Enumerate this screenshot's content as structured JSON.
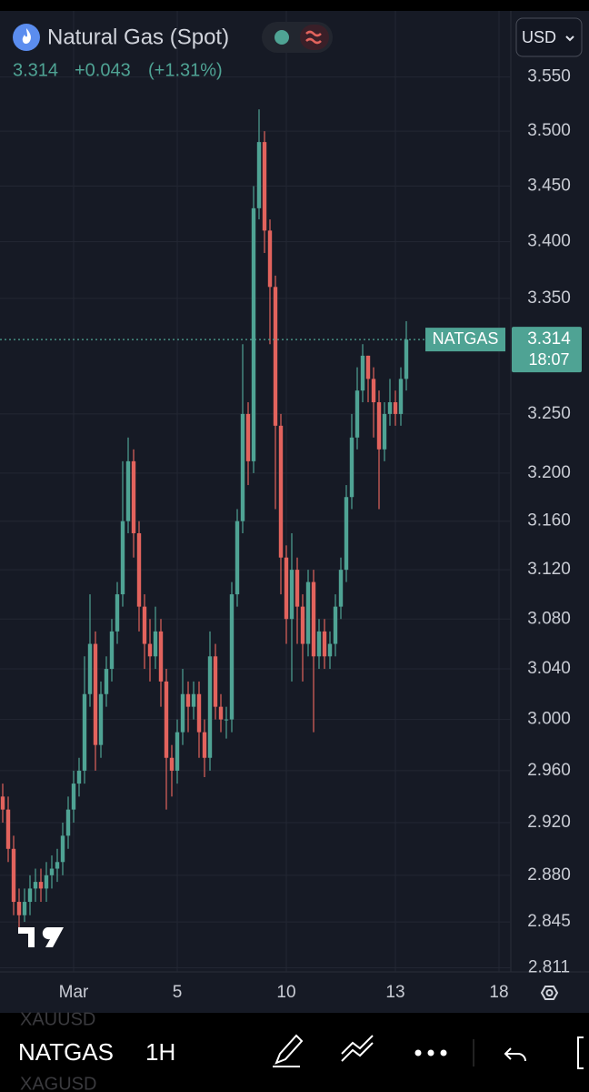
{
  "header": {
    "title": "Natural Gas (Spot)",
    "change": "+0.043",
    "change_percent": "(+1.31%)",
    "currency": "USD"
  },
  "toolbar": {
    "symbol": "NATGAS",
    "interval": "1H",
    "ghost_symbols": [
      "XAUUSD",
      "XAGUSD"
    ]
  },
  "chart_data": {
    "type": "candlestick",
    "categories": [
      null,
      null,
      null,
      null,
      null,
      null,
      null,
      null,
      null,
      null,
      null,
      null,
      null,
      "Mar",
      null,
      null,
      null,
      null,
      null,
      null,
      null,
      null,
      null,
      null,
      null,
      null,
      null,
      null,
      null,
      null,
      null,
      null,
      "5",
      null,
      null,
      null,
      null,
      null,
      null,
      null,
      null,
      null,
      null,
      null,
      null,
      null,
      null,
      null,
      null,
      null,
      null,
      null,
      "10",
      null,
      null,
      null,
      null,
      null,
      null,
      null,
      null,
      null,
      null,
      null,
      null,
      null,
      null,
      null,
      null,
      null,
      null,
      null,
      "13",
      null,
      null,
      null,
      null,
      null,
      null,
      null,
      null,
      null,
      null,
      null,
      null,
      null,
      null,
      null,
      null,
      null,
      null,
      "18"
    ],
    "open": [
      2.94,
      2.93,
      2.9,
      2.86,
      2.85,
      2.86,
      2.87,
      2.875,
      2.87,
      2.88,
      2.885,
      2.89,
      2.91,
      2.93,
      2.95,
      2.96,
      3.02,
      3.06,
      2.98,
      3.02,
      3.04,
      3.07,
      3.1,
      3.16,
      3.21,
      3.15,
      3.09,
      3.06,
      3.05,
      3.07,
      3.03,
      2.97,
      2.96,
      2.99,
      3.02,
      3.01,
      3.02,
      2.99,
      2.97,
      3.05,
      3.01,
      3.0,
      3.0,
      3.1,
      3.16,
      3.25,
      3.21,
      3.43,
      3.49,
      3.41,
      3.36,
      3.24,
      3.13,
      3.08,
      3.12,
      3.09,
      3.06,
      3.11,
      3.05,
      3.07,
      3.05,
      3.06,
      3.09,
      3.12,
      3.18,
      3.23,
      3.27,
      3.3,
      3.28,
      3.26,
      3.22,
      3.25,
      3.26,
      3.25,
      3.28,
      null,
      null,
      null,
      null,
      null,
      null,
      null,
      null,
      null,
      null,
      null,
      null,
      null,
      null,
      null,
      null,
      null
    ],
    "high": [
      2.95,
      2.94,
      2.91,
      2.87,
      2.87,
      2.88,
      2.885,
      2.885,
      2.89,
      2.895,
      2.9,
      2.92,
      2.94,
      2.96,
      2.97,
      3.05,
      3.1,
      3.07,
      3.03,
      3.05,
      3.08,
      3.11,
      3.21,
      3.23,
      3.22,
      3.16,
      3.1,
      3.08,
      3.09,
      3.08,
      3.04,
      2.98,
      3.0,
      3.04,
      3.03,
      3.03,
      3.03,
      3.0,
      3.07,
      3.06,
      3.02,
      3.01,
      3.11,
      3.17,
      3.31,
      3.26,
      3.45,
      3.52,
      3.5,
      3.42,
      3.37,
      3.25,
      3.14,
      3.15,
      3.13,
      3.1,
      3.12,
      3.12,
      3.08,
      3.08,
      3.07,
      3.1,
      3.13,
      3.19,
      3.25,
      3.29,
      3.31,
      3.3,
      3.29,
      3.27,
      3.26,
      3.28,
      3.27,
      3.29,
      3.33,
      null,
      null,
      null,
      null,
      null,
      null,
      null,
      null,
      null,
      null,
      null,
      null,
      null,
      null,
      null,
      null,
      null
    ],
    "low": [
      2.92,
      2.89,
      2.85,
      2.84,
      2.845,
      2.85,
      2.86,
      2.86,
      2.86,
      2.87,
      2.875,
      2.88,
      2.9,
      2.92,
      2.94,
      2.95,
      3.01,
      2.96,
      2.97,
      3.01,
      3.03,
      3.06,
      3.09,
      3.15,
      3.13,
      3.07,
      3.04,
      3.03,
      3.04,
      3.01,
      2.93,
      2.94,
      2.95,
      2.98,
      2.99,
      3.0,
      2.97,
      2.955,
      2.96,
      3.0,
      2.99,
      2.985,
      2.99,
      3.09,
      3.15,
      3.19,
      3.2,
      3.42,
      3.39,
      3.31,
      3.17,
      3.1,
      3.06,
      3.03,
      3.06,
      3.03,
      3.05,
      2.99,
      3.04,
      3.04,
      3.04,
      3.05,
      3.08,
      3.11,
      3.17,
      3.22,
      3.26,
      3.26,
      3.23,
      3.17,
      3.21,
      3.24,
      3.24,
      3.24,
      3.27,
      null,
      null,
      null,
      null,
      null,
      null,
      null,
      null,
      null,
      null,
      null,
      null,
      null,
      null,
      null,
      null,
      null
    ],
    "close": [
      2.93,
      2.9,
      2.86,
      2.85,
      2.86,
      2.87,
      2.875,
      2.87,
      2.88,
      2.885,
      2.89,
      2.91,
      2.93,
      2.95,
      2.96,
      3.02,
      3.06,
      2.98,
      3.02,
      3.04,
      3.07,
      3.1,
      3.16,
      3.21,
      3.15,
      3.09,
      3.06,
      3.05,
      3.07,
      3.03,
      2.97,
      2.96,
      2.99,
      3.02,
      3.01,
      3.02,
      2.99,
      2.97,
      3.05,
      3.01,
      3.0,
      3.0,
      3.1,
      3.16,
      3.25,
      3.21,
      3.43,
      3.49,
      3.41,
      3.36,
      3.24,
      3.13,
      3.08,
      3.12,
      3.09,
      3.06,
      3.11,
      3.05,
      3.07,
      3.05,
      3.06,
      3.09,
      3.12,
      3.18,
      3.23,
      3.27,
      3.3,
      3.28,
      3.26,
      3.22,
      3.25,
      3.26,
      3.25,
      3.28,
      3.314,
      null,
      null,
      null,
      null,
      null,
      null,
      null,
      null,
      null,
      null,
      null,
      null,
      null,
      null,
      null,
      null,
      null
    ],
    "up_color": "#4fa394",
    "down_color": "#e2635d",
    "ylim": [
      2.808,
      3.612
    ],
    "log_scale": true,
    "grid": true,
    "yticks": [
      2.811,
      2.845,
      {
        "value": 2.88,
        "label": "2.880"
      },
      {
        "value": 2.92,
        "label": "2.920"
      },
      {
        "value": 2.96,
        "label": "2.960"
      },
      {
        "value": 3,
        "label": "3.000"
      },
      {
        "value": 3.04,
        "label": "3.040"
      },
      {
        "value": 3.08,
        "label": "3.080"
      },
      {
        "value": 3.12,
        "label": "3.120"
      },
      {
        "value": 3.16,
        "label": "3.160"
      },
      {
        "value": 3.2,
        "label": "3.200"
      },
      {
        "value": 3.25,
        "label": "3.250"
      },
      {
        "value": 3.35,
        "label": "3.350"
      },
      {
        "value": 3.4,
        "label": "3.400"
      },
      {
        "value": 3.45,
        "label": "3.450"
      },
      {
        "value": 3.5,
        "label": "3.500"
      },
      {
        "value": 3.55,
        "label": "3.550"
      }
    ],
    "last_price": 3.314,
    "last_symbol": "NATGAS",
    "countdown": "18:07"
  }
}
